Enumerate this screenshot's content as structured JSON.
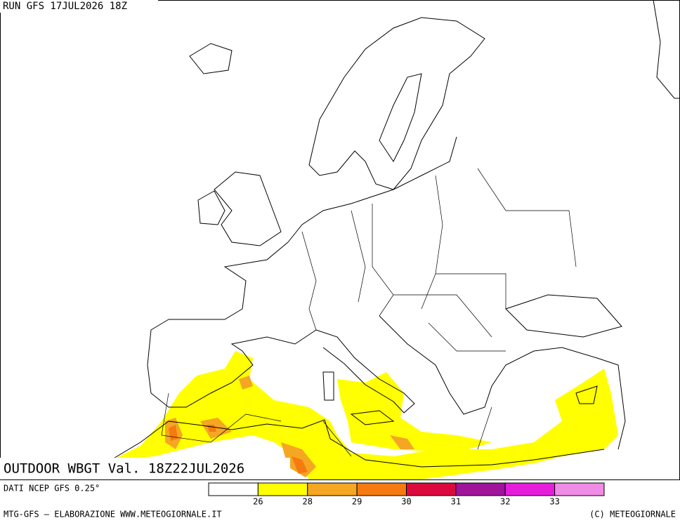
{
  "header": {
    "run": "RUN GFS 17JUL2026 18Z"
  },
  "map": {
    "title": "OUTDOOR WBGT Val. 18Z22JUL2026"
  },
  "legend": {
    "source": "DATI NCEP GFS 0.25°",
    "colors": [
      "#ffffff",
      "#ffff00",
      "#f5a623",
      "#f57a10",
      "#dc0a3c",
      "#a0149b",
      "#e61edc",
      "#f08ce6"
    ],
    "thresholds": [
      26,
      28,
      29,
      30,
      31,
      32,
      33
    ]
  },
  "footer": {
    "left": "MTG-GFS — ELABORAZIONE WWW.METEOGIORNALE.IT",
    "right": "(C) METEOGIORNALE"
  }
}
